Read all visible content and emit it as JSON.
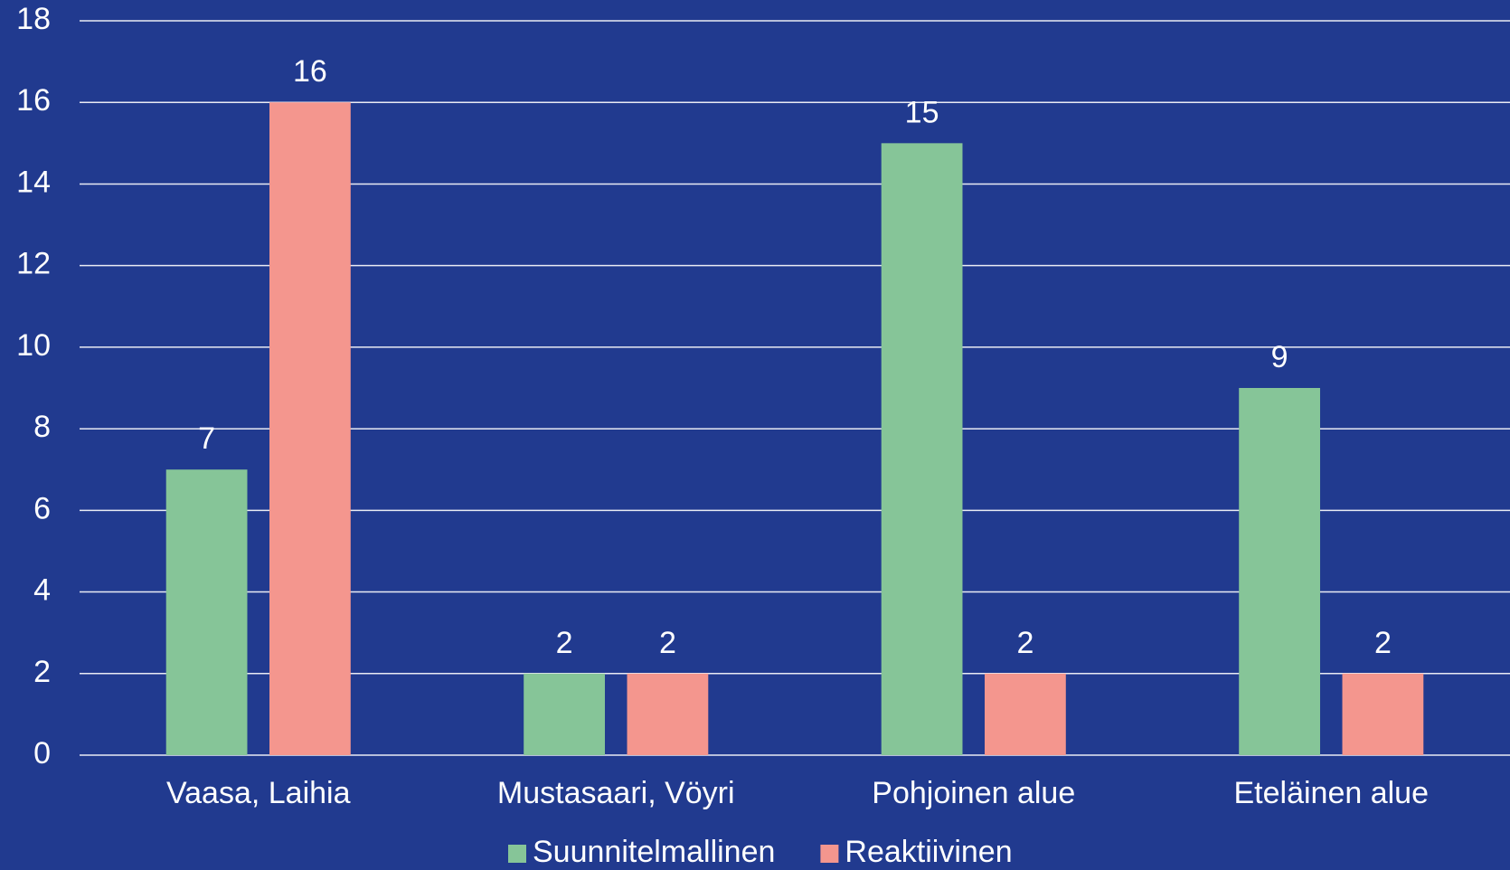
{
  "chart_data": {
    "type": "bar",
    "categories": [
      "Vaasa, Laihia",
      "Mustasaari, Vöyri",
      "Pohjoinen alue",
      "Eteläinen alue"
    ],
    "series": [
      {
        "name": "Suunnitelmallinen",
        "color": "#86c598",
        "values": [
          7,
          2,
          15,
          9
        ]
      },
      {
        "name": "Reaktiivinen",
        "color": "#f4968e",
        "values": [
          16,
          2,
          2,
          2
        ]
      }
    ],
    "ylim": [
      0,
      18
    ],
    "yticks": [
      0,
      2,
      4,
      6,
      8,
      10,
      12,
      14,
      16,
      18
    ],
    "grid": true,
    "legend": "bottom"
  }
}
